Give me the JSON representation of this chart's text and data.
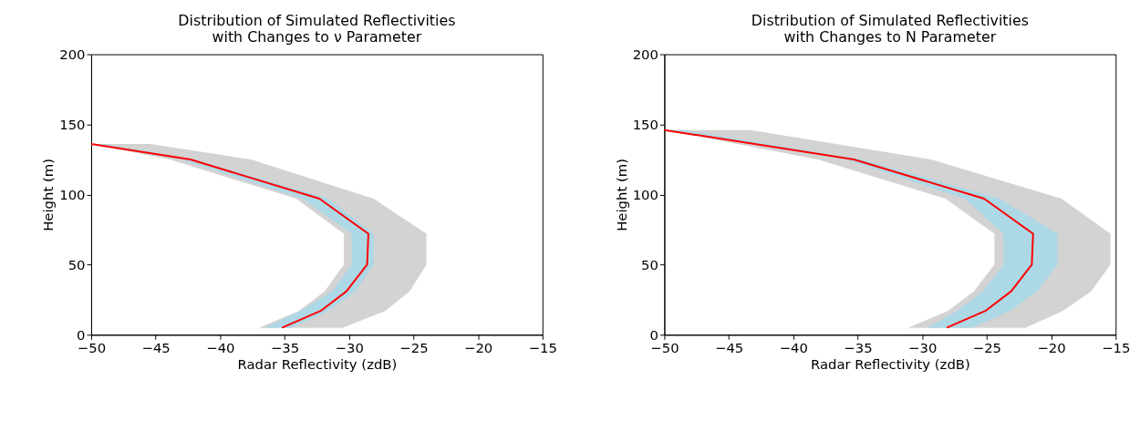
{
  "chart_data": [
    {
      "type": "line",
      "orientation": "horizontal",
      "title": "Distribution of Simulated Reflectivities\nwith Changes to ν Parameter",
      "xlabel": "Radar Reflectivity (zdB)",
      "ylabel": "Height (m)",
      "xlim": [
        -50,
        -15
      ],
      "xticks": [
        -50,
        -45,
        -40,
        -35,
        -30,
        -25,
        -20,
        -15
      ],
      "ylim": [
        0,
        200
      ],
      "yticks": [
        0,
        50,
        100,
        150,
        200
      ],
      "grid": false,
      "legend": false,
      "line_style": "solid",
      "marker": "none",
      "series": [
        {
          "type": "area",
          "color": "#d3d3d3",
          "x": [
            5,
            17,
            31,
            50,
            72,
            97,
            125,
            136
          ],
          "values": [
            null,
            null,
            null,
            null,
            null,
            null,
            null,
            null
          ],
          "lower": [
            -37.0,
            -33.9,
            -31.9,
            -30.4,
            -30.4,
            -34.1,
            -43.9,
            -50
          ],
          "upper": [
            -30.5,
            -27.2,
            -25.3,
            -24.0,
            -24.0,
            -28.1,
            -37.6,
            -45.4
          ]
        },
        {
          "type": "area",
          "color": "#add8e6",
          "x": [
            5,
            17,
            31,
            50,
            72,
            97,
            125,
            136
          ],
          "values": [
            null,
            null,
            null,
            null,
            null,
            null,
            null,
            null
          ],
          "lower": [
            -36.5,
            -33.8,
            -31.3,
            -29.8,
            -29.8,
            -33.6,
            -43.0,
            -50
          ],
          "upper": [
            -34.5,
            -31.6,
            -29.5,
            -28.1,
            -28.1,
            -31.6,
            -42.0,
            -49
          ]
        },
        {
          "type": "line",
          "color": "#ff0000",
          "x": [
            5,
            17,
            31,
            50,
            72,
            97,
            125,
            136
          ],
          "values": [
            -35.2,
            -32.2,
            -30.2,
            -28.6,
            -28.5,
            -32.3,
            -42.3,
            -50
          ]
        }
      ]
    },
    {
      "type": "line",
      "orientation": "horizontal",
      "title": "Distribution of Simulated Reflectivities\nwith Changes to N Parameter",
      "xlabel": "Radar Reflectivity (zdB)",
      "ylabel": "Height (m)",
      "xlim": [
        -50,
        -15
      ],
      "xticks": [
        -50,
        -45,
        -40,
        -35,
        -30,
        -25,
        -20,
        -15
      ],
      "ylim": [
        0,
        200
      ],
      "yticks": [
        0,
        50,
        100,
        150,
        200
      ],
      "grid": false,
      "legend": false,
      "line_style": "solid",
      "marker": "none",
      "series": [
        {
          "type": "area",
          "color": "#d3d3d3",
          "x": [
            5,
            17,
            31,
            50,
            72,
            97,
            125,
            146
          ],
          "values": [
            null,
            null,
            null,
            null,
            null,
            null,
            null,
            null
          ],
          "lower": [
            -31.1,
            -28.0,
            -26.0,
            -24.4,
            -24.4,
            -28.2,
            -38.1,
            -50
          ],
          "upper": [
            -22.0,
            -19.1,
            -16.9,
            -15.4,
            -15.4,
            -19.2,
            -29.3,
            -43.3
          ]
        },
        {
          "type": "area",
          "color": "#add8e6",
          "x": [
            5,
            17,
            31,
            50,
            72,
            97,
            125,
            146
          ],
          "values": [
            null,
            null,
            null,
            null,
            null,
            null,
            null,
            null
          ],
          "lower": [
            -29.6,
            -27.3,
            -25.3,
            -23.7,
            -23.7,
            -26.7,
            -35.9,
            -50
          ],
          "upper": [
            -26.1,
            -23.2,
            -21.1,
            -19.5,
            -19.5,
            -24.0,
            -34.7,
            -48.5
          ]
        },
        {
          "type": "line",
          "color": "#ff0000",
          "x": [
            5,
            17,
            31,
            50,
            72,
            97,
            125,
            146
          ],
          "values": [
            -28.1,
            -25.1,
            -23.1,
            -21.5,
            -21.4,
            -25.2,
            -35.3,
            -50
          ]
        }
      ]
    }
  ]
}
